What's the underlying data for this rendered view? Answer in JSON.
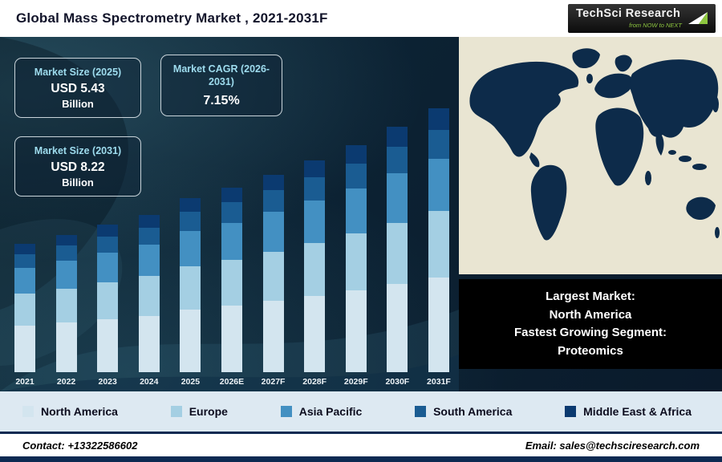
{
  "header": {
    "title": "Global Mass Spectrometry Market , 2021-2031F",
    "logo": {
      "brand": "TechSci Research",
      "tagline": "from NOW to NEXT"
    }
  },
  "info_boxes": [
    {
      "label": "Market Size (2025)",
      "value": "USD 5.43",
      "unit": "Billion"
    },
    {
      "label": "Market CAGR (2026-2031)",
      "value": "7.15%",
      "unit": ""
    },
    {
      "label": "Market Size (2031)",
      "value": "USD 8.22",
      "unit": "Billion"
    }
  ],
  "chart_data": {
    "type": "bar",
    "stacked": true,
    "title": "Global Mass Spectrometry Market , 2021-2031F",
    "categories": [
      "2021",
      "2022",
      "2023",
      "2024",
      "2025",
      "2026E",
      "2027F",
      "2028F",
      "2029F",
      "2030F",
      "2031F"
    ],
    "series": [
      {
        "name": "North America",
        "color": "#d3e5ef",
        "values": [
          1.44,
          1.54,
          1.65,
          1.76,
          1.95,
          2.07,
          2.22,
          2.38,
          2.55,
          2.75,
          2.96
        ]
      },
      {
        "name": "Europe",
        "color": "#a4cfe3",
        "values": [
          1.0,
          1.07,
          1.15,
          1.23,
          1.36,
          1.44,
          1.54,
          1.65,
          1.77,
          1.91,
          2.06
        ]
      },
      {
        "name": "Asia Pacific",
        "color": "#4390c2",
        "values": [
          0.8,
          0.86,
          0.92,
          0.98,
          1.09,
          1.15,
          1.23,
          1.32,
          1.41,
          1.53,
          1.64
        ]
      },
      {
        "name": "South America",
        "color": "#1a5c92",
        "values": [
          0.44,
          0.47,
          0.5,
          0.54,
          0.6,
          0.63,
          0.68,
          0.73,
          0.78,
          0.84,
          0.9
        ]
      },
      {
        "name": "Middle East & Africa",
        "color": "#0b3a70",
        "values": [
          0.32,
          0.34,
          0.37,
          0.39,
          0.43,
          0.46,
          0.49,
          0.52,
          0.56,
          0.62,
          0.66
        ]
      }
    ],
    "totals": [
      4.0,
      4.28,
      4.58,
      4.9,
      5.43,
      5.75,
      6.16,
      6.6,
      7.07,
      7.65,
      8.22
    ],
    "unit": "USD Billion",
    "ylim": [
      0,
      9
    ],
    "grid": false,
    "legend_position": "bottom"
  },
  "highlight_box": {
    "lines": [
      "Largest Market:",
      "North America",
      "Fastest Growing Segment:",
      "Proteomics"
    ]
  },
  "footer": {
    "contact": "Contact: +13322586602",
    "email": "Email: sales@techsciresearch.com"
  },
  "colors": {
    "accent_green": "#8dc63f",
    "panel_navy": "#0d2a52",
    "legend_bg": "#dde9f2",
    "map_sea": "#e9e5d2",
    "map_land": "#0d2b4a"
  }
}
